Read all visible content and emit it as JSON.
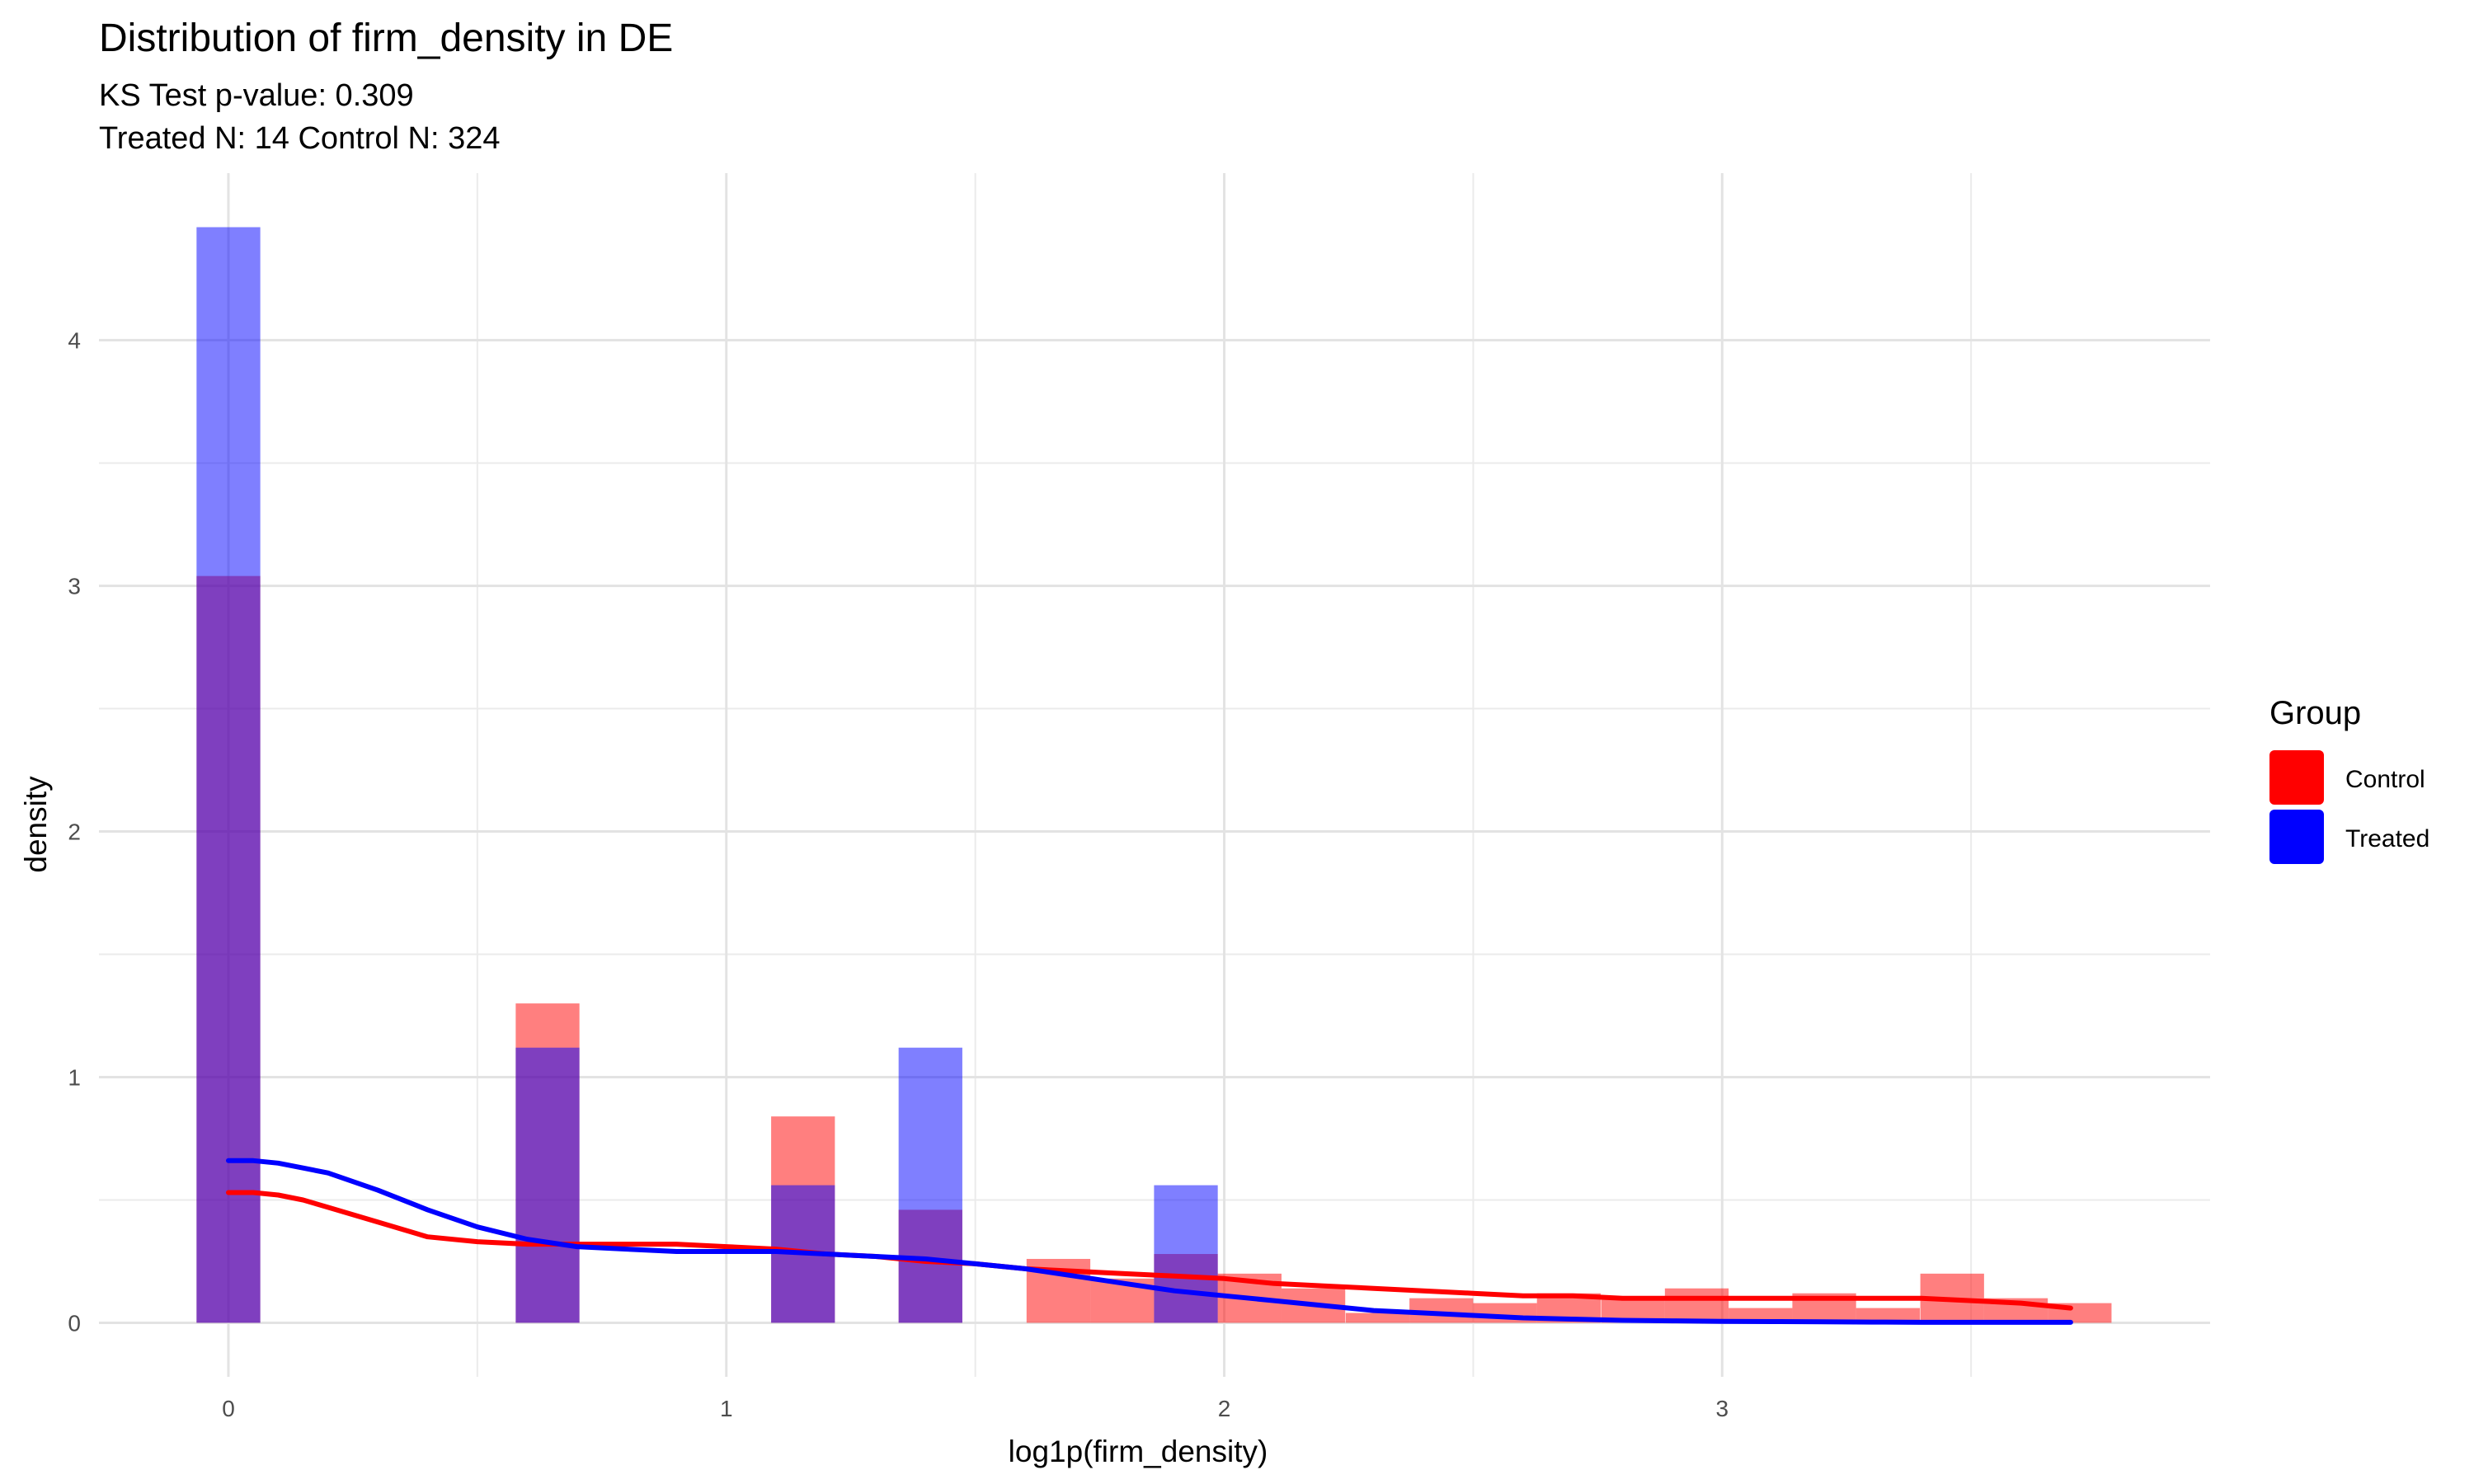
{
  "chart_data": {
    "type": "bar",
    "title": "Distribution of firm_density in DE",
    "subtitle_line1": "KS Test p-value: 0.309",
    "subtitle_line2": "Treated N: 14 Control N: 324",
    "xlabel": "log1p(firm_density)",
    "ylabel": "density",
    "xlim": [
      -0.26,
      3.98
    ],
    "ylim": [
      -0.22,
      4.68
    ],
    "x_ticks": [
      0,
      1,
      2,
      3
    ],
    "x_tick_labels": [
      "0",
      "1",
      "2",
      "3"
    ],
    "x_minor_ticks": [
      0.5,
      1.5,
      2.5,
      3.5
    ],
    "y_ticks": [
      0,
      1,
      2,
      3,
      4
    ],
    "y_tick_labels": [
      "0",
      "1",
      "2",
      "3",
      "4"
    ],
    "y_minor_ticks": [
      0.5,
      1.5,
      2.5,
      3.5
    ],
    "grid": true,
    "bin_width": 0.128,
    "legend": {
      "title": "Group",
      "position": "right",
      "entries": [
        "Control",
        "Treated"
      ]
    },
    "colors": {
      "Control": "#ff0000",
      "Treated": "#0000ff"
    },
    "series": [
      {
        "name": "Control",
        "bins": [
          {
            "x": 0.0,
            "y": 3.04
          },
          {
            "x": 0.641,
            "y": 1.3
          },
          {
            "x": 1.154,
            "y": 0.84
          },
          {
            "x": 1.41,
            "y": 0.46
          },
          {
            "x": 1.667,
            "y": 0.26
          },
          {
            "x": 1.795,
            "y": 0.18
          },
          {
            "x": 1.923,
            "y": 0.28
          },
          {
            "x": 2.051,
            "y": 0.2
          },
          {
            "x": 2.179,
            "y": 0.14
          },
          {
            "x": 2.308,
            "y": 0.04
          },
          {
            "x": 2.436,
            "y": 0.1
          },
          {
            "x": 2.564,
            "y": 0.08
          },
          {
            "x": 2.692,
            "y": 0.12
          },
          {
            "x": 2.821,
            "y": 0.1
          },
          {
            "x": 2.949,
            "y": 0.14
          },
          {
            "x": 3.077,
            "y": 0.06
          },
          {
            "x": 3.205,
            "y": 0.12
          },
          {
            "x": 3.333,
            "y": 0.06
          },
          {
            "x": 3.462,
            "y": 0.2
          },
          {
            "x": 3.59,
            "y": 0.1
          },
          {
            "x": 3.718,
            "y": 0.08
          }
        ],
        "density_curve": {
          "x": [
            0.0,
            0.05,
            0.1,
            0.15,
            0.2,
            0.3,
            0.4,
            0.5,
            0.6,
            0.7,
            0.8,
            0.9,
            1.0,
            1.1,
            1.2,
            1.3,
            1.4,
            1.5,
            1.6,
            1.7,
            1.8,
            1.9,
            2.0,
            2.1,
            2.2,
            2.3,
            2.4,
            2.5,
            2.6,
            2.7,
            2.8,
            2.9,
            3.0,
            3.1,
            3.2,
            3.3,
            3.4,
            3.5,
            3.6,
            3.7
          ],
          "y": [
            0.53,
            0.53,
            0.52,
            0.5,
            0.47,
            0.41,
            0.35,
            0.33,
            0.32,
            0.32,
            0.32,
            0.32,
            0.31,
            0.3,
            0.28,
            0.27,
            0.25,
            0.24,
            0.22,
            0.21,
            0.2,
            0.19,
            0.18,
            0.16,
            0.15,
            0.14,
            0.13,
            0.12,
            0.11,
            0.11,
            0.1,
            0.1,
            0.1,
            0.1,
            0.1,
            0.1,
            0.1,
            0.09,
            0.08,
            0.06
          ]
        }
      },
      {
        "name": "Treated",
        "bins": [
          {
            "x": 0.0,
            "y": 4.46
          },
          {
            "x": 0.641,
            "y": 1.12
          },
          {
            "x": 1.154,
            "y": 0.56
          },
          {
            "x": 1.41,
            "y": 1.12
          },
          {
            "x": 1.923,
            "y": 0.56
          }
        ],
        "density_curve": {
          "x": [
            0.0,
            0.05,
            0.1,
            0.15,
            0.2,
            0.3,
            0.4,
            0.5,
            0.6,
            0.7,
            0.8,
            0.9,
            1.0,
            1.1,
            1.2,
            1.3,
            1.4,
            1.5,
            1.6,
            1.7,
            1.8,
            1.9,
            2.0,
            2.1,
            2.2,
            2.3,
            2.4,
            2.5,
            2.6,
            2.7,
            2.8,
            2.9,
            3.0,
            3.1,
            3.2,
            3.3,
            3.4,
            3.5,
            3.6,
            3.7
          ],
          "y": [
            0.66,
            0.66,
            0.65,
            0.63,
            0.61,
            0.54,
            0.46,
            0.39,
            0.34,
            0.31,
            0.3,
            0.29,
            0.29,
            0.29,
            0.28,
            0.27,
            0.26,
            0.24,
            0.22,
            0.19,
            0.16,
            0.13,
            0.11,
            0.09,
            0.07,
            0.05,
            0.04,
            0.03,
            0.02,
            0.015,
            0.01,
            0.008,
            0.006,
            0.005,
            0.004,
            0.003,
            0.002,
            0.002,
            0.002,
            0.002
          ]
        }
      }
    ]
  }
}
